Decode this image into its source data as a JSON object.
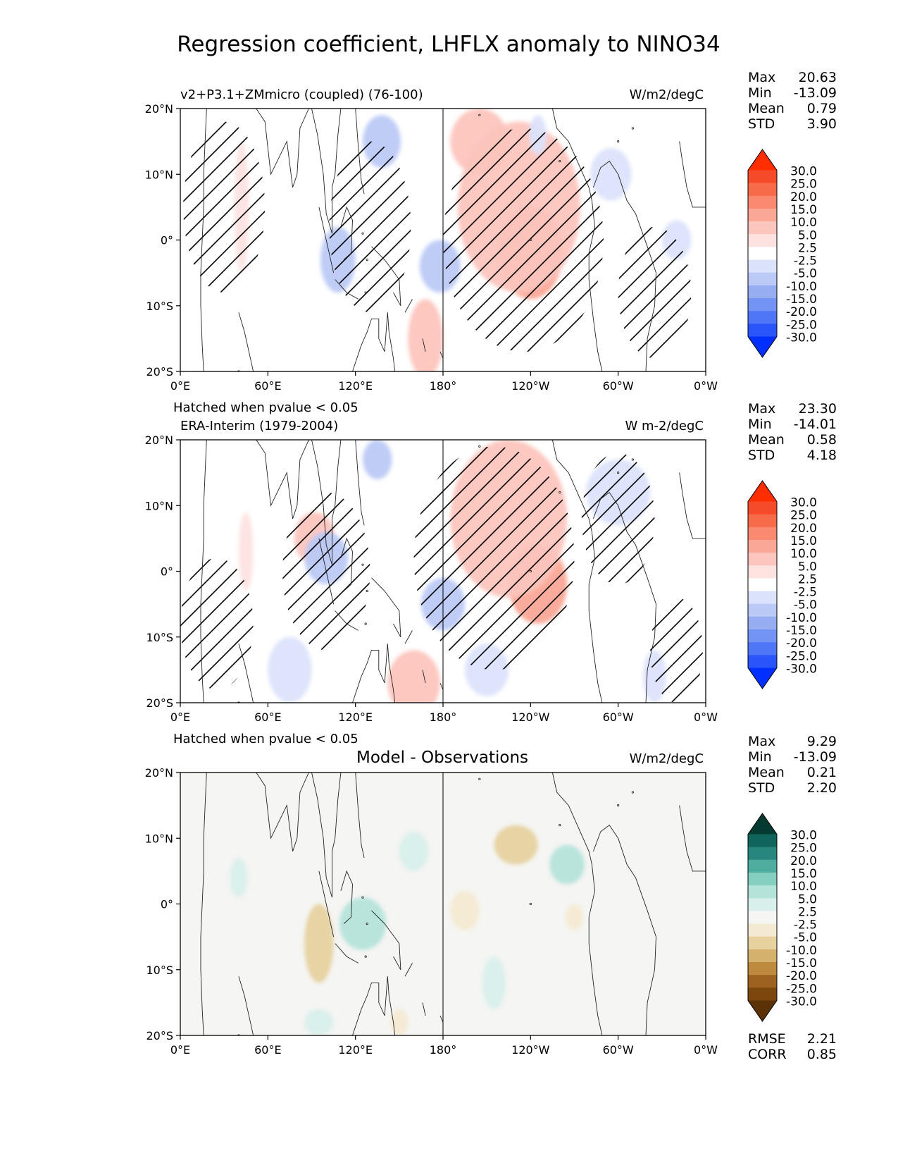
{
  "title": "Regression coefficient, LHFLX anomaly to NINO34",
  "colors": {
    "diverging": [
      "#0030ff",
      "#2a55fb",
      "#4f76f7",
      "#7394f5",
      "#97adf2",
      "#bac9f5",
      "#dbe3fb",
      "#ffffff",
      "#fde3e0",
      "#fcc5bd",
      "#fba796",
      "#f9896f",
      "#f76b4a",
      "#f54b2a",
      "#ff2e00"
    ],
    "brbg": [
      "#5a3206",
      "#7c470c",
      "#9e6220",
      "#bd8a3e",
      "#d4b16d",
      "#e6d19f",
      "#f4ead2",
      "#f5f5f3",
      "#d8efeb",
      "#b4e3da",
      "#84cfc0",
      "#4fada0",
      "#27867d",
      "#0f645c",
      "#053a31"
    ]
  },
  "chart_data": [
    {
      "type": "heatmap",
      "name": "model",
      "title": "v2+P3.1+ZMmicro (coupled) (76-100)",
      "units": "W/m2/degC",
      "xticks": [
        "0°E",
        "60°E",
        "120°E",
        "180°",
        "120°W",
        "60°W",
        "0°W"
      ],
      "yticks": [
        "20°N",
        "10°N",
        "0°",
        "10°S",
        "20°S"
      ],
      "xlim": [
        0,
        360
      ],
      "ylim": [
        -20,
        20
      ],
      "colormap": "diverging",
      "levels": [
        "30.0",
        "25.0",
        "20.0",
        "15.0",
        "10.0",
        "5.0",
        "2.5",
        "-2.5",
        "-5.0",
        "-10.0",
        "-15.0",
        "-20.0",
        "-25.0",
        "-30.0"
      ],
      "stats": [
        {
          "label": "Max",
          "value": "20.63"
        },
        {
          "label": "Min",
          "value": "-13.09"
        },
        {
          "label": "Mean",
          "value": "0.79"
        },
        {
          "label": "STD",
          "value": "3.90"
        }
      ],
      "footnote": "Hatched when pvalue < 0.05",
      "blobs": [
        {
          "lon": 240,
          "lat": -2,
          "rx": 22,
          "ry": 7,
          "value": 14
        },
        {
          "lon": 232,
          "lat": 5,
          "rx": 42,
          "ry": 13,
          "value": 6
        },
        {
          "lon": 205,
          "lat": 15,
          "rx": 20,
          "ry": 5,
          "value": 5
        },
        {
          "lon": 168,
          "lat": -15,
          "rx": 12,
          "ry": 6,
          "value": 5
        },
        {
          "lon": 42,
          "lat": 5,
          "rx": 5,
          "ry": 10,
          "value": 4
        },
        {
          "lon": 108,
          "lat": -3,
          "rx": 12,
          "ry": 5,
          "value": -6
        },
        {
          "lon": 178,
          "lat": -4,
          "rx": 14,
          "ry": 4,
          "value": -7
        },
        {
          "lon": 138,
          "lat": 15,
          "rx": 13,
          "ry": 4,
          "value": -5
        },
        {
          "lon": 295,
          "lat": 10,
          "rx": 14,
          "ry": 4,
          "value": -4
        },
        {
          "lon": 340,
          "lat": 0,
          "rx": 10,
          "ry": 3,
          "value": -4
        },
        {
          "lon": 245,
          "lat": 16,
          "rx": 6,
          "ry": 3,
          "value": -3
        }
      ],
      "hatch": [
        {
          "lon": 30,
          "lat": 5,
          "rx": 28,
          "ry": 13
        },
        {
          "lon": 130,
          "lat": 2,
          "rx": 28,
          "ry": 13
        },
        {
          "lon": 235,
          "lat": 0,
          "rx": 55,
          "ry": 17
        },
        {
          "lon": 325,
          "lat": -8,
          "rx": 25,
          "ry": 10
        }
      ]
    },
    {
      "type": "heatmap",
      "name": "observations",
      "title": "ERA-Interim (1979-2004)",
      "units": "W m-2/degC",
      "xticks": [
        "0°E",
        "60°E",
        "120°E",
        "180°",
        "120°W",
        "60°W",
        "0°W"
      ],
      "yticks": [
        "20°N",
        "10°N",
        "0°",
        "10°S",
        "20°S"
      ],
      "xlim": [
        0,
        360
      ],
      "ylim": [
        -20,
        20
      ],
      "colormap": "diverging",
      "levels": [
        "30.0",
        "25.0",
        "20.0",
        "15.0",
        "10.0",
        "5.0",
        "2.5",
        "-2.5",
        "-5.0",
        "-10.0",
        "-15.0",
        "-20.0",
        "-25.0",
        "-30.0"
      ],
      "stats": [
        {
          "label": "Max",
          "value": "23.30"
        },
        {
          "label": "Min",
          "value": "-14.01"
        },
        {
          "label": "Mean",
          "value": "0.58"
        },
        {
          "label": "STD",
          "value": "4.18"
        }
      ],
      "footnote": "Hatched when pvalue < 0.05",
      "blobs": [
        {
          "lon": 245,
          "lat": -2,
          "rx": 20,
          "ry": 6,
          "value": 14
        },
        {
          "lon": 225,
          "lat": 8,
          "rx": 40,
          "ry": 12,
          "value": 7
        },
        {
          "lon": 160,
          "lat": -17,
          "rx": 18,
          "ry": 5,
          "value": 6
        },
        {
          "lon": 92,
          "lat": 5,
          "rx": 14,
          "ry": 4,
          "value": 5
        },
        {
          "lon": 45,
          "lat": 3,
          "rx": 5,
          "ry": 6,
          "value": 4
        },
        {
          "lon": 100,
          "lat": 2,
          "rx": 15,
          "ry": 4,
          "value": -7
        },
        {
          "lon": 180,
          "lat": -5,
          "rx": 15,
          "ry": 4,
          "value": -8
        },
        {
          "lon": 135,
          "lat": 17,
          "rx": 10,
          "ry": 3,
          "value": -5
        },
        {
          "lon": 300,
          "lat": 12,
          "rx": 22,
          "ry": 5,
          "value": -4
        },
        {
          "lon": 75,
          "lat": -15,
          "rx": 15,
          "ry": 5,
          "value": -4
        },
        {
          "lon": 210,
          "lat": -15,
          "rx": 15,
          "ry": 4,
          "value": -4
        },
        {
          "lon": 325,
          "lat": -16,
          "rx": 8,
          "ry": 4,
          "value": -4
        }
      ],
      "hatch": [
        {
          "lon": 215,
          "lat": 2,
          "rx": 55,
          "ry": 17
        },
        {
          "lon": 100,
          "lat": 0,
          "rx": 30,
          "ry": 12
        },
        {
          "lon": 300,
          "lat": 8,
          "rx": 25,
          "ry": 10
        },
        {
          "lon": 25,
          "lat": -8,
          "rx": 25,
          "ry": 10
        },
        {
          "lon": 340,
          "lat": -12,
          "rx": 18,
          "ry": 8
        }
      ]
    },
    {
      "type": "heatmap",
      "name": "difference",
      "title": "Model - Observations",
      "units": "W/m2/degC",
      "xticks": [
        "0°E",
        "60°E",
        "120°E",
        "180°",
        "120°W",
        "60°W",
        "0°W"
      ],
      "yticks": [
        "20°N",
        "10°N",
        "0°",
        "10°S",
        "20°S"
      ],
      "xlim": [
        0,
        360
      ],
      "ylim": [
        -20,
        20
      ],
      "colormap": "brbg",
      "levels": [
        "30.0",
        "25.0",
        "20.0",
        "15.0",
        "10.0",
        "5.0",
        "2.5",
        "-2.5",
        "-5.0",
        "-10.0",
        "-15.0",
        "-20.0",
        "-25.0",
        "-30.0"
      ],
      "stats": [
        {
          "label": "Max",
          "value": "9.29"
        },
        {
          "label": "Min",
          "value": "-13.09"
        },
        {
          "label": "Mean",
          "value": "0.21"
        },
        {
          "label": "STD",
          "value": "2.20"
        }
      ],
      "metrics": [
        {
          "label": "RMSE",
          "value": "2.21"
        },
        {
          "label": "CORR",
          "value": "0.85"
        }
      ],
      "blobs": [
        {
          "lon": 95,
          "lat": -6,
          "rx": 10,
          "ry": 6,
          "value": -6
        },
        {
          "lon": 230,
          "lat": 9,
          "rx": 15,
          "ry": 3,
          "value": -5
        },
        {
          "lon": 195,
          "lat": -1,
          "rx": 10,
          "ry": 3,
          "value": -4
        },
        {
          "lon": 150,
          "lat": -18,
          "rx": 6,
          "ry": 2,
          "value": -3
        },
        {
          "lon": 270,
          "lat": -2,
          "rx": 6,
          "ry": 2,
          "value": -3
        },
        {
          "lon": 125,
          "lat": -3,
          "rx": 16,
          "ry": 4,
          "value": 6
        },
        {
          "lon": 265,
          "lat": 6,
          "rx": 12,
          "ry": 3,
          "value": 5
        },
        {
          "lon": 160,
          "lat": 8,
          "rx": 10,
          "ry": 3,
          "value": 4
        },
        {
          "lon": 215,
          "lat": -12,
          "rx": 8,
          "ry": 4,
          "value": 4
        },
        {
          "lon": 40,
          "lat": 4,
          "rx": 6,
          "ry": 3,
          "value": 3
        },
        {
          "lon": 95,
          "lat": -18,
          "rx": 10,
          "ry": 2,
          "value": 4
        }
      ]
    }
  ]
}
